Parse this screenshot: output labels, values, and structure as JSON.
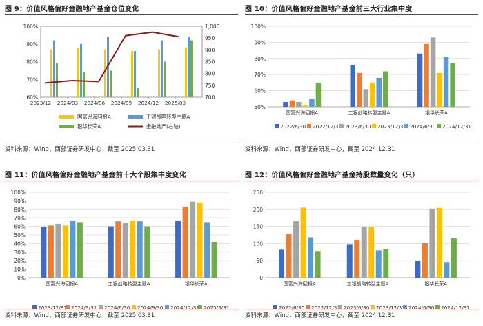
{
  "charts": [
    {
      "title": "图 9：价值风格偏好金融地产基金仓位变化",
      "source": "资料来源：Wind，西部证券研发中心，截至 2025.03.31",
      "chart_data": {
        "type": "bar+line",
        "categories": [
          "2023/12",
          "2024/03",
          "2024/06",
          "2024/09",
          "2024/12",
          "2025/03"
        ],
        "ylim": [
          60,
          100
        ],
        "yticks": [
          "60%",
          "70%",
          "80%",
          "90%",
          "100%"
        ],
        "y2lim": [
          700,
          1000
        ],
        "y2ticks": [
          "700",
          "750",
          "800",
          "850",
          "900",
          "950",
          "1,000"
        ],
        "series": [
          {
            "name": "国富兴海回报A",
            "color": "#f5c518",
            "values": [
              87,
              88,
              87,
              86,
              87,
              88
            ]
          },
          {
            "name": "工银战略转型主题A",
            "color": "#5b9bd5",
            "values": [
              92,
              90,
              94,
              86,
              92,
              94
            ]
          },
          {
            "name": "银华长荣A",
            "color": "#70ad47",
            "values": [
              79,
              74,
              75,
              65,
              80,
              92
            ]
          }
        ],
        "line": {
          "name": "金融地产(右轴)",
          "color": "#8b1a1a",
          "values": [
            760,
            770,
            766,
            960,
            975,
            955
          ]
        }
      }
    },
    {
      "title": "图 10：价值风格偏好金融地产基金前三大行业集中度",
      "source": "资料来源：Wind，西部证券研发中心，截至 2024.12.31",
      "chart_data": {
        "type": "bar",
        "categories": [
          "国富兴海回报A",
          "工银战略转型主题A",
          "银华长荣A"
        ],
        "ylim": [
          50,
          100
        ],
        "yticks": [
          "50%",
          "60%",
          "70%",
          "80%",
          "90%",
          "100%"
        ],
        "series": [
          {
            "name": "2022/6/30",
            "color": "#3d6cc5",
            "values": [
              53,
              76,
              83
            ]
          },
          {
            "name": "2022/12/31",
            "color": "#ed7d31",
            "values": [
              54,
              71,
              89
            ]
          },
          {
            "name": "2023/6/30",
            "color": "#a5a5a5",
            "values": [
              53,
              61,
              93
            ]
          },
          {
            "name": "2023/12/31",
            "color": "#ffc000",
            "values": [
              51,
              65,
              71
            ]
          },
          {
            "name": "2024/6/30",
            "color": "#5b9bd5",
            "values": [
              55,
              68,
              81
            ]
          },
          {
            "name": "2024/12/31",
            "color": "#70ad47",
            "values": [
              65,
              72,
              77
            ]
          }
        ]
      }
    },
    {
      "title": "图 11：价值风格偏好金融地产基金前十大个股集中度变化",
      "source": "资料来源：Wind，西部证券研发中心，截至 2025.03.31",
      "chart_data": {
        "type": "bar",
        "categories": [
          "国富兴海回报A",
          "工银战略转型主题A",
          "银华长荣A"
        ],
        "ylim": [
          0,
          100
        ],
        "yticks": [
          "0%",
          "10%",
          "20%",
          "30%",
          "40%",
          "50%",
          "60%",
          "70%",
          "80%",
          "90%",
          "100%"
        ],
        "series": [
          {
            "name": "2023/12/31",
            "color": "#3d6cc5",
            "values": [
              59,
              60,
              67
            ]
          },
          {
            "name": "2024/3/31",
            "color": "#ed7d31",
            "values": [
              61,
              66,
              83
            ]
          },
          {
            "name": "2024/6/30",
            "color": "#a5a5a5",
            "values": [
              63,
              64,
              89
            ]
          },
          {
            "name": "2024/9/30",
            "color": "#ffc000",
            "values": [
              61,
              67,
              88
            ]
          },
          {
            "name": "2024/12/31",
            "color": "#5b9bd5",
            "values": [
              67,
              66,
              65
            ]
          },
          {
            "name": "2025/3/31",
            "color": "#70ad47",
            "values": [
              65,
              60,
              42
            ]
          }
        ]
      }
    },
    {
      "title": "图 12：价值风格偏好金融地产基金持股数量变化（只）",
      "source": "资料来源：Wind，西部证券研发中心，截至 2024.12.31",
      "chart_data": {
        "type": "bar",
        "categories": [
          "国富兴海回报A",
          "工银战略转型主题A",
          "银华长荣A"
        ],
        "ylim": [
          0,
          250
        ],
        "yticks": [
          "0",
          "50",
          "100",
          "150",
          "200",
          "250"
        ],
        "series": [
          {
            "name": "2022/6/30",
            "color": "#3d6cc5",
            "values": [
              82,
              98,
              50
            ]
          },
          {
            "name": "2022/12/31",
            "color": "#ed7d31",
            "values": [
              128,
              111,
              101
            ]
          },
          {
            "name": "2023/6/30",
            "color": "#a5a5a5",
            "values": [
              166,
              148,
              202
            ]
          },
          {
            "name": "2023/12/31",
            "color": "#ffc000",
            "values": [
              205,
              148,
              204
            ]
          },
          {
            "name": "2024/6/30",
            "color": "#5b9bd5",
            "values": [
              118,
              80,
              46
            ]
          },
          {
            "name": "2024/12/31",
            "color": "#70ad47",
            "values": [
              78,
              83,
              115
            ]
          }
        ]
      }
    }
  ]
}
